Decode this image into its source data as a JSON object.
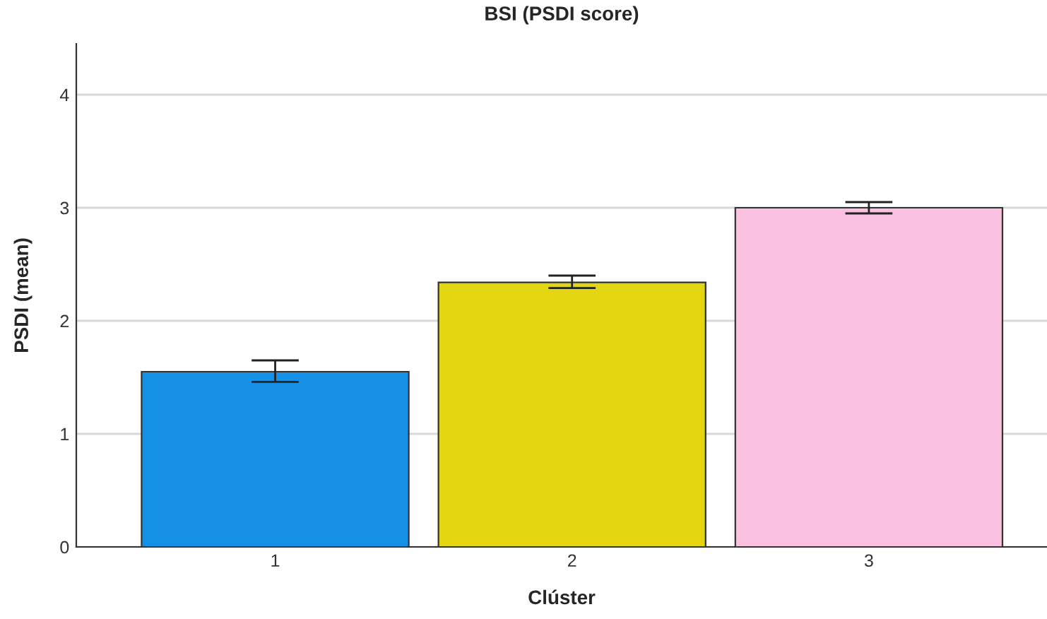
{
  "chart_data": {
    "type": "bar",
    "title": "BSI (PSDI score)",
    "xlabel": "Clúster",
    "ylabel": "PSDI (mean)",
    "categories": [
      "1",
      "2",
      "3"
    ],
    "values": [
      1.55,
      2.34,
      3.0
    ],
    "colors": [
      "#1490e6",
      "#e2d613",
      "#f9c0e0"
    ],
    "errors": [
      [
        1.46,
        1.65
      ],
      [
        2.29,
        2.4
      ],
      [
        2.95,
        3.05
      ]
    ],
    "ylim": [
      0,
      4.45
    ],
    "yticks": [
      0,
      1,
      2,
      3,
      4
    ],
    "grid": "y",
    "legend": false
  }
}
